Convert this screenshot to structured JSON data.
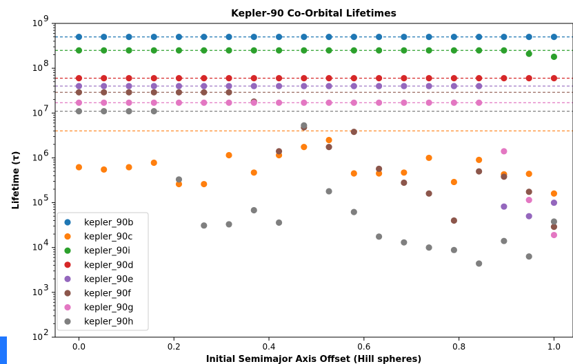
{
  "chart_data": {
    "type": "scatter",
    "title": "Kepler-90 Co-Orbital Lifetimes",
    "xlabel": "Initial Semimajor Axis Offset (Hill spheres)",
    "ylabel": "Lifetime (τ)",
    "xlim": [
      -0.05,
      1.04
    ],
    "ylim": [
      100,
      1000000000
    ],
    "yscale": "log",
    "xticks": [
      {
        "value": 0.0,
        "label": "0.0"
      },
      {
        "value": 0.2,
        "label": "0.2"
      },
      {
        "value": 0.4,
        "label": "0.4"
      },
      {
        "value": 0.6,
        "label": "0.6"
      },
      {
        "value": 0.8,
        "label": "0.8"
      },
      {
        "value": 1.0,
        "label": "1.0"
      }
    ],
    "yticks": [
      {
        "value": 100,
        "base": "10",
        "exp": "2"
      },
      {
        "value": 1000,
        "base": "10",
        "exp": "3"
      },
      {
        "value": 10000,
        "base": "10",
        "exp": "4"
      },
      {
        "value": 100000,
        "base": "10",
        "exp": "5"
      },
      {
        "value": 1000000,
        "base": "10",
        "exp": "6"
      },
      {
        "value": 10000000,
        "base": "10",
        "exp": "7"
      },
      {
        "value": 100000000,
        "base": "10",
        "exp": "8"
      },
      {
        "value": 1000000000,
        "base": "10",
        "exp": "9"
      }
    ],
    "grid": false,
    "legend_position": "lower-left",
    "x": [
      0.0,
      0.0526,
      0.1053,
      0.1579,
      0.2105,
      0.2632,
      0.3158,
      0.3684,
      0.4211,
      0.4737,
      0.5263,
      0.5789,
      0.6316,
      0.6842,
      0.7368,
      0.7895,
      0.8421,
      0.8947,
      0.9474,
      1.0
    ],
    "series": [
      {
        "name": "kepler_90b",
        "color": "#1f77b4",
        "reference_line": 500000000,
        "values": [
          500000000,
          500000000,
          500000000,
          500000000,
          500000000,
          500000000,
          500000000,
          500000000,
          500000000,
          500000000,
          500000000,
          500000000,
          500000000,
          500000000,
          500000000,
          500000000,
          500000000,
          500000000,
          500000000,
          500000000
        ]
      },
      {
        "name": "kepler_90c",
        "color": "#ff7f0e",
        "reference_line": 4000000,
        "values": [
          620000,
          550000,
          620000,
          780000,
          260000,
          260000,
          1150000,
          470000,
          1150000,
          1750000,
          2500000,
          450000,
          450000,
          470000,
          1000000,
          290000,
          900000,
          430000,
          440000,
          160000
        ]
      },
      {
        "name": "kepler_90i",
        "color": "#2ca02c",
        "reference_line": 250000000,
        "values": [
          250000000,
          250000000,
          250000000,
          250000000,
          250000000,
          250000000,
          250000000,
          250000000,
          250000000,
          250000000,
          250000000,
          250000000,
          250000000,
          250000000,
          250000000,
          250000000,
          250000000,
          250000000,
          210000000,
          180000000
        ]
      },
      {
        "name": "kepler_90d",
        "color": "#d62728",
        "reference_line": 60000000,
        "values": [
          60000000,
          60000000,
          60000000,
          60000000,
          60000000,
          60000000,
          60000000,
          60000000,
          60000000,
          60000000,
          60000000,
          60000000,
          60000000,
          60000000,
          60000000,
          60000000,
          60000000,
          60000000,
          60000000,
          60000000
        ]
      },
      {
        "name": "kepler_90e",
        "color": "#9467bd",
        "reference_line": 40000000,
        "values": [
          40000000,
          40000000,
          40000000,
          40000000,
          40000000,
          40000000,
          40000000,
          40000000,
          40000000,
          40000000,
          40000000,
          40000000,
          40000000,
          40000000,
          40000000,
          40000000,
          40000000,
          82000,
          50000,
          100000
        ]
      },
      {
        "name": "kepler_90f",
        "color": "#8c564b",
        "reference_line": 29000000,
        "values": [
          29000000,
          29000000,
          29000000,
          29000000,
          29000000,
          29000000,
          29000000,
          18000000,
          1400000,
          4800000,
          1750000,
          3800000,
          570000,
          280000,
          160000,
          40000,
          500000,
          380000,
          175000,
          29000
        ]
      },
      {
        "name": "kepler_90g",
        "color": "#e377c2",
        "reference_line": 17000000,
        "values": [
          17000000,
          17000000,
          17000000,
          17000000,
          17000000,
          17000000,
          17000000,
          17000000,
          17000000,
          17000000,
          17000000,
          17000000,
          17000000,
          17000000,
          17000000,
          17000000,
          17000000,
          1400000,
          115000,
          19000
        ]
      },
      {
        "name": "kepler_90h",
        "color": "#7f7f7f",
        "reference_line": 11000000,
        "values": [
          11000000,
          11000000,
          11000000,
          11000000,
          330000,
          31000,
          33000,
          68000,
          36000,
          5300000,
          180000,
          62000,
          17500,
          13000,
          10000,
          8800,
          4400,
          14000,
          6300,
          38000
        ]
      }
    ]
  }
}
